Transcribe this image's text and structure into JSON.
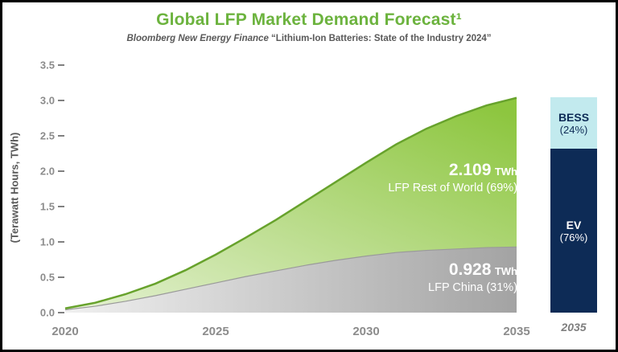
{
  "header": {
    "title": "Global LFP Market Demand Forecast¹",
    "subtitle_source": "Bloomberg New Energy Finance",
    "subtitle_quote": "“Lithium-Ion Batteries: State of the Industry 2024”"
  },
  "colors": {
    "title_green": "#6cb33e",
    "area_green_light": "#e4f1d2",
    "area_green": "#8dc63f",
    "area_green_edge": "#67a22c",
    "area_gray_light": "#f0f0f0",
    "area_gray": "#a3a3a3",
    "navy": "#0d2b56",
    "cyan": "#c2eaee",
    "axis_text": "#8c8c8c"
  },
  "chart_data": {
    "type": "area",
    "stacked": true,
    "title": "Global LFP Market Demand Forecast¹",
    "ylabel": "(Terawatt Hours, TWh)",
    "ylim": [
      0,
      3.5
    ],
    "x": [
      2020,
      2021,
      2022,
      2023,
      2024,
      2025,
      2026,
      2027,
      2028,
      2029,
      2030,
      2031,
      2032,
      2033,
      2034,
      2035
    ],
    "series": [
      {
        "name": "LFP China",
        "share_label": "LFP China (31%)",
        "final_value_twh": 0.928,
        "values": [
          0.04,
          0.09,
          0.16,
          0.24,
          0.33,
          0.42,
          0.51,
          0.59,
          0.67,
          0.74,
          0.8,
          0.85,
          0.88,
          0.9,
          0.92,
          0.928
        ]
      },
      {
        "name": "LFP Rest of World",
        "share_label": "LFP Rest of World (69%)",
        "final_value_twh": 2.109,
        "values": [
          0.02,
          0.05,
          0.1,
          0.17,
          0.27,
          0.4,
          0.55,
          0.72,
          0.91,
          1.11,
          1.32,
          1.53,
          1.72,
          1.88,
          2.01,
          2.109
        ]
      }
    ],
    "yticks": [
      "0.0",
      "0.5",
      "1.0",
      "1.5",
      "2.0",
      "2.5",
      "3.0",
      "3.5"
    ],
    "xticks": [
      "2020",
      "2025",
      "2030",
      "2035"
    ]
  },
  "annotations": {
    "rest_of_world": {
      "value": "2.109",
      "unit": "TWh",
      "label": "LFP Rest of World (69%)"
    },
    "china": {
      "value": "0.928",
      "unit": "TWh",
      "label": "LFP China (31%)"
    }
  },
  "bar_2035": {
    "type": "bar",
    "year": "2035",
    "segments": [
      {
        "name": "BESS",
        "pct_label": "(24%)",
        "pct": 24
      },
      {
        "name": "EV",
        "pct_label": "(76%)",
        "pct": 76
      }
    ]
  }
}
